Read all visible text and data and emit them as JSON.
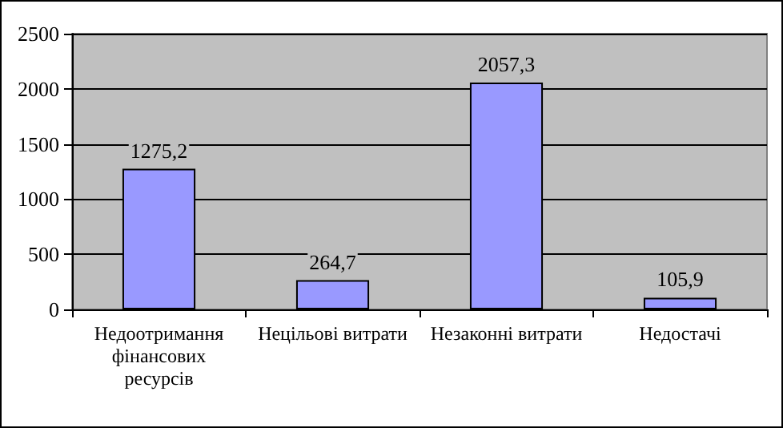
{
  "chart_data": {
    "type": "bar",
    "categories": [
      "Недоотримання фінансових ресурсів",
      "Нецільові витрати",
      "Незаконні витрати",
      "Недостачі"
    ],
    "values": [
      1275.2,
      264.7,
      2057.3,
      105.9
    ],
    "value_labels": [
      "1275,2",
      "264,7",
      "2057,3",
      "105,9"
    ],
    "color": "#9999ff",
    "ylim": [
      0,
      2500
    ],
    "yticks": [
      0,
      500,
      1000,
      1500,
      2000,
      2500
    ],
    "grid": "y"
  }
}
